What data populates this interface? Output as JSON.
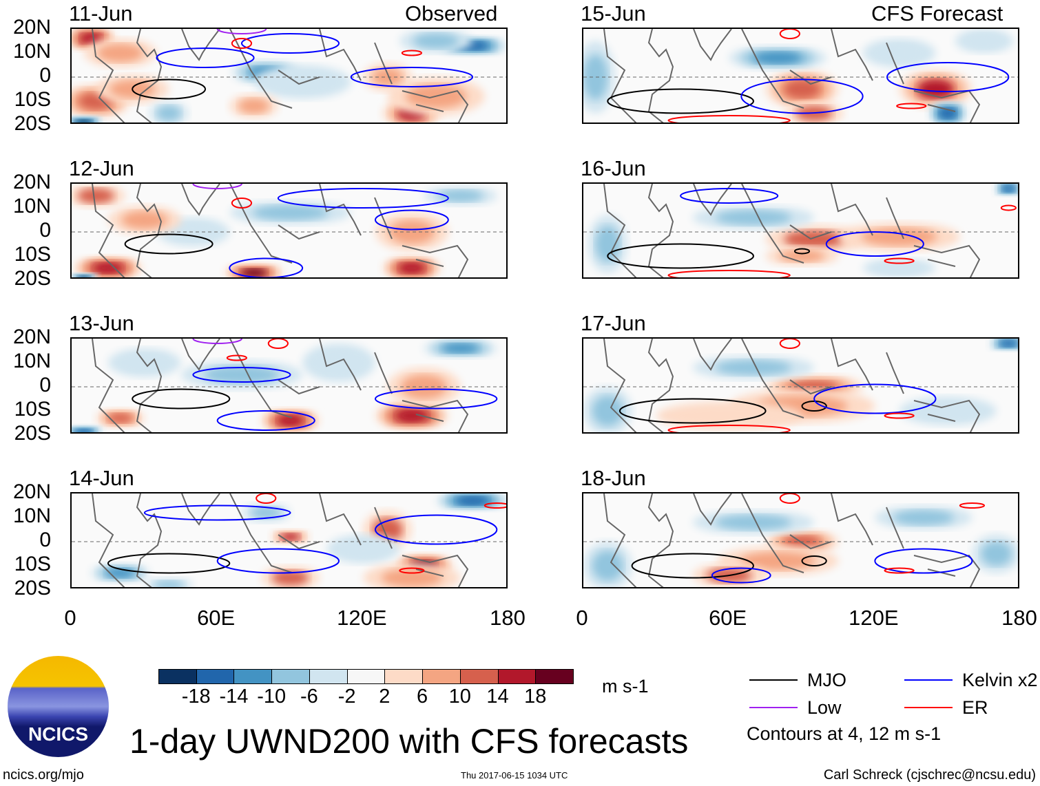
{
  "title": "1-day UWND200 with CFS forecasts",
  "left_header": "Observed",
  "right_header": "CFS Forecast",
  "lat_labels": [
    "20N",
    "10N",
    "0",
    "10S",
    "20S"
  ],
  "lon_labels": [
    "0",
    "60E",
    "120E",
    "180"
  ],
  "colorbar": {
    "colors": [
      "#0a3161",
      "#2166ac",
      "#4393c3",
      "#92c5de",
      "#d1e5f0",
      "#f7f7f7",
      "#fddbc7",
      "#f4a582",
      "#d6604d",
      "#b2182b",
      "#67001f"
    ],
    "labels": [
      "-18",
      "-14",
      "-10",
      "-6",
      "-2",
      "2",
      "6",
      "10",
      "14",
      "18"
    ],
    "units": "m s-1"
  },
  "legend": {
    "items": [
      {
        "label": "MJO",
        "color": "#000000"
      },
      {
        "label": "Kelvin x2",
        "color": "#0000ff"
      },
      {
        "label": "Low",
        "color": "#a020f0"
      },
      {
        "label": "ER",
        "color": "#ff0000"
      }
    ],
    "note": "Contours at 4, 12 m s-1"
  },
  "logo": {
    "text": "NCICS"
  },
  "footer": {
    "left": "ncics.org/mjo",
    "center": "Thu 2017-06-15 1034 UTC",
    "right": "Carl Schreck (cjschrec@ncsu.edu)"
  },
  "panels": [
    {
      "date": "11-Jun",
      "col": 0,
      "row": 0,
      "blobs": [
        [
          8,
          16,
          10,
          5,
          16
        ],
        [
          20,
          10,
          15,
          6,
          8
        ],
        [
          80,
          2,
          14,
          5,
          -12
        ],
        [
          95,
          -2,
          20,
          7,
          -6
        ],
        [
          10,
          -10,
          14,
          7,
          12
        ],
        [
          25,
          -5,
          15,
          6,
          8
        ],
        [
          5,
          -19,
          8,
          3,
          -20
        ],
        [
          140,
          -15,
          12,
          6,
          14
        ],
        [
          150,
          -8,
          20,
          8,
          6
        ],
        [
          165,
          13,
          14,
          4,
          -18
        ],
        [
          150,
          15,
          15,
          5,
          -8
        ],
        [
          75,
          -12,
          10,
          5,
          8
        ],
        [
          40,
          -15,
          8,
          5,
          -8
        ],
        [
          130,
          0,
          10,
          6,
          6
        ]
      ],
      "contours": [
        [
          "mjo",
          40,
          -5,
          15,
          4
        ],
        [
          "kelvin",
          55,
          8,
          20,
          4
        ],
        [
          "kelvin",
          90,
          14,
          20,
          4
        ],
        [
          "kelvin",
          140,
          0,
          25,
          4
        ],
        [
          "er",
          70,
          14,
          4,
          2
        ],
        [
          "er",
          140,
          10,
          4,
          1
        ],
        [
          "low",
          70,
          20,
          10,
          2
        ]
      ]
    },
    {
      "date": "12-Jun",
      "col": 0,
      "row": 1,
      "blobs": [
        [
          10,
          15,
          12,
          5,
          10
        ],
        [
          15,
          -15,
          14,
          5,
          16
        ],
        [
          75,
          -17,
          12,
          4,
          18
        ],
        [
          140,
          -15,
          12,
          5,
          16
        ],
        [
          140,
          0,
          15,
          8,
          8
        ],
        [
          90,
          8,
          25,
          5,
          -10
        ],
        [
          50,
          0,
          15,
          6,
          -6
        ],
        [
          5,
          -19,
          6,
          2,
          -20
        ],
        [
          160,
          15,
          15,
          4,
          -8
        ],
        [
          30,
          5,
          15,
          6,
          6
        ]
      ],
      "contours": [
        [
          "mjo",
          40,
          -5,
          18,
          4
        ],
        [
          "kelvin",
          80,
          -15,
          15,
          4
        ],
        [
          "kelvin",
          140,
          5,
          15,
          4
        ],
        [
          "kelvin",
          120,
          14,
          35,
          4
        ],
        [
          "er",
          70,
          12,
          4,
          2
        ],
        [
          "low",
          60,
          20,
          10,
          2
        ]
      ]
    },
    {
      "date": "13-Jun",
      "col": 0,
      "row": 2,
      "blobs": [
        [
          90,
          -14,
          12,
          5,
          16
        ],
        [
          140,
          -12,
          15,
          6,
          16
        ],
        [
          145,
          0,
          15,
          8,
          8
        ],
        [
          70,
          5,
          25,
          6,
          -8
        ],
        [
          160,
          16,
          15,
          4,
          -12
        ],
        [
          20,
          -13,
          10,
          4,
          12
        ],
        [
          5,
          -19,
          8,
          3,
          -18
        ],
        [
          30,
          10,
          15,
          6,
          -6
        ],
        [
          110,
          10,
          15,
          8,
          -6
        ]
      ],
      "contours": [
        [
          "mjo",
          45,
          -5,
          20,
          4
        ],
        [
          "kelvin",
          80,
          -14,
          20,
          4
        ],
        [
          "kelvin",
          150,
          -5,
          25,
          4
        ],
        [
          "kelvin",
          70,
          5,
          20,
          3
        ],
        [
          "er",
          85,
          18,
          4,
          2
        ],
        [
          "er",
          68,
          12,
          4,
          1
        ],
        [
          "low",
          60,
          20,
          10,
          2
        ]
      ]
    },
    {
      "date": "14-Jun",
      "col": 0,
      "row": 3,
      "blobs": [
        [
          90,
          2,
          8,
          3,
          14
        ],
        [
          90,
          -15,
          12,
          5,
          10
        ],
        [
          145,
          -10,
          12,
          5,
          18
        ],
        [
          130,
          5,
          10,
          8,
          10
        ],
        [
          165,
          17,
          15,
          4,
          -16
        ],
        [
          80,
          12,
          10,
          4,
          -10
        ],
        [
          20,
          -13,
          12,
          4,
          -14
        ],
        [
          40,
          -18,
          10,
          3,
          -10
        ],
        [
          120,
          -3,
          15,
          6,
          -6
        ],
        [
          140,
          -15,
          20,
          6,
          6
        ]
      ],
      "contours": [
        [
          "mjo",
          40,
          -9,
          25,
          4
        ],
        [
          "kelvin",
          85,
          -8,
          25,
          5
        ],
        [
          "kelvin",
          150,
          5,
          25,
          6
        ],
        [
          "kelvin",
          60,
          12,
          30,
          3
        ],
        [
          "er",
          80,
          18,
          4,
          2
        ],
        [
          "er",
          140,
          -12,
          5,
          1
        ],
        [
          "er",
          175,
          15,
          5,
          1
        ]
      ]
    },
    {
      "date": "15-Jun",
      "col": 1,
      "row": 0,
      "blobs": [
        [
          90,
          -5,
          15,
          8,
          12
        ],
        [
          95,
          -15,
          12,
          5,
          10
        ],
        [
          145,
          -5,
          15,
          8,
          14
        ],
        [
          150,
          -15,
          8,
          5,
          -16
        ],
        [
          80,
          8,
          20,
          5,
          -12
        ],
        [
          5,
          0,
          8,
          15,
          -10
        ],
        [
          165,
          15,
          12,
          5,
          -6
        ],
        [
          130,
          10,
          15,
          6,
          -6
        ]
      ],
      "contours": [
        [
          "mjo",
          40,
          -10,
          30,
          5
        ],
        [
          "kelvin",
          90,
          -8,
          25,
          7
        ],
        [
          "kelvin",
          150,
          0,
          25,
          6
        ],
        [
          "er",
          85,
          18,
          4,
          2
        ],
        [
          "er",
          135,
          -12,
          6,
          1
        ],
        [
          "er",
          60,
          -18,
          25,
          2
        ]
      ]
    },
    {
      "date": "16-Jun",
      "col": 1,
      "row": 1,
      "blobs": [
        [
          95,
          -3,
          20,
          6,
          10
        ],
        [
          90,
          -10,
          15,
          4,
          6
        ],
        [
          130,
          -2,
          25,
          6,
          6
        ],
        [
          70,
          6,
          25,
          5,
          -10
        ],
        [
          10,
          -5,
          8,
          12,
          -10
        ],
        [
          175,
          18,
          6,
          3,
          -18
        ],
        [
          130,
          -15,
          15,
          4,
          -6
        ]
      ],
      "contours": [
        [
          "mjo",
          40,
          -10,
          30,
          5
        ],
        [
          "mjo",
          90,
          -8,
          3,
          1
        ],
        [
          "kelvin",
          60,
          15,
          20,
          3
        ],
        [
          "kelvin",
          120,
          -5,
          20,
          5
        ],
        [
          "er",
          130,
          -12,
          6,
          1
        ],
        [
          "er",
          175,
          10,
          3,
          1
        ],
        [
          "er",
          60,
          -18,
          25,
          2
        ]
      ]
    },
    {
      "date": "17-Jun",
      "col": 1,
      "row": 2,
      "blobs": [
        [
          95,
          0,
          20,
          5,
          12
        ],
        [
          90,
          -8,
          30,
          7,
          6
        ],
        [
          60,
          -12,
          30,
          6,
          4
        ],
        [
          70,
          8,
          25,
          5,
          -10
        ],
        [
          10,
          -10,
          10,
          10,
          -10
        ],
        [
          175,
          18,
          8,
          3,
          -18
        ],
        [
          150,
          -10,
          20,
          6,
          -6
        ]
      ],
      "contours": [
        [
          "mjo",
          45,
          -10,
          30,
          5
        ],
        [
          "mjo",
          95,
          -8,
          5,
          2
        ],
        [
          "kelvin",
          120,
          -5,
          25,
          6
        ],
        [
          "er",
          130,
          -12,
          6,
          1
        ],
        [
          "er",
          85,
          18,
          4,
          2
        ],
        [
          "er",
          60,
          -18,
          25,
          2
        ]
      ]
    },
    {
      "date": "18-Jun",
      "col": 1,
      "row": 3,
      "blobs": [
        [
          90,
          0,
          15,
          5,
          12
        ],
        [
          80,
          -8,
          25,
          6,
          6
        ],
        [
          60,
          -14,
          15,
          5,
          10
        ],
        [
          70,
          8,
          25,
          5,
          -10
        ],
        [
          10,
          -10,
          10,
          10,
          -10
        ],
        [
          140,
          10,
          20,
          5,
          -8
        ],
        [
          170,
          -5,
          10,
          8,
          -8
        ]
      ],
      "contours": [
        [
          "mjo",
          45,
          -10,
          25,
          5
        ],
        [
          "mjo",
          95,
          -8,
          5,
          2
        ],
        [
          "kelvin",
          65,
          -14,
          12,
          3
        ],
        [
          "kelvin",
          140,
          -8,
          20,
          5
        ],
        [
          "er",
          130,
          -12,
          6,
          1
        ],
        [
          "er",
          85,
          18,
          4,
          2
        ],
        [
          "er",
          160,
          15,
          5,
          1
        ]
      ]
    }
  ]
}
